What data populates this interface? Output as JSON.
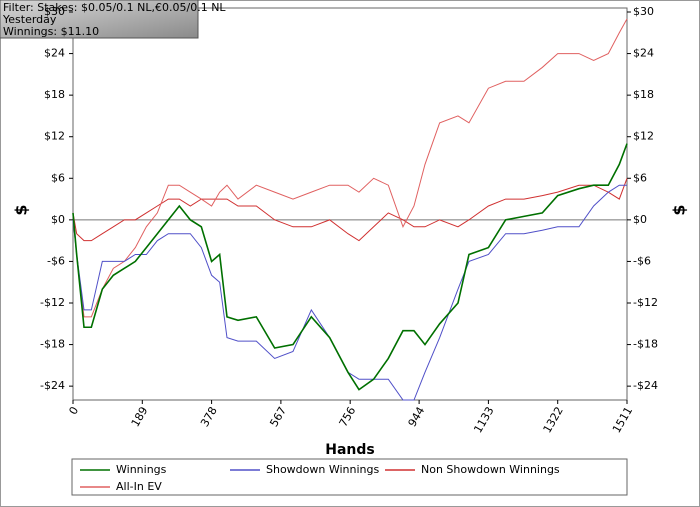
{
  "chart_data": {
    "type": "line",
    "filter_lines": [
      "Filter: Stakes: $0.05/0.1 NL,€0.05/0.1 NL",
      "Yesterday",
      "Winnings: $11.10"
    ],
    "xlabel": "Hands",
    "ylabel": "$",
    "y2label": "$",
    "x": [
      0,
      10,
      30,
      50,
      80,
      110,
      140,
      170,
      200,
      230,
      260,
      290,
      320,
      350,
      378,
      400,
      420,
      450,
      500,
      550,
      600,
      650,
      700,
      750,
      780,
      820,
      860,
      900,
      930,
      960,
      1000,
      1050,
      1080,
      1133,
      1180,
      1230,
      1280,
      1322,
      1380,
      1420,
      1460,
      1490,
      1511
    ],
    "series": [
      {
        "name": "Winnings",
        "color": "#007000",
        "values": [
          1,
          -5,
          -15.5,
          -15.5,
          -10,
          -8,
          -7,
          -6,
          -4,
          -2,
          0,
          2,
          0,
          -1,
          -6,
          -5,
          -14,
          -14.5,
          -14,
          -18.5,
          -18,
          -14,
          -17,
          -22,
          -24.5,
          -23,
          -20,
          -16,
          -16,
          -18,
          -15,
          -12,
          -5,
          -4,
          0,
          0.5,
          1,
          3.5,
          4.5,
          5,
          5,
          8,
          11
        ]
      },
      {
        "name": "Showdown Winnings",
        "color": "#5050c8",
        "values": [
          0,
          -5,
          -13,
          -13,
          -6,
          -6,
          -6,
          -5,
          -5,
          -3,
          -2,
          -2,
          -2,
          -4,
          -8,
          -9,
          -17,
          -17.5,
          -17.5,
          -20,
          -19,
          -13,
          -17,
          -22,
          -23,
          -23,
          -23,
          -26,
          -26,
          -22,
          -17,
          -10,
          -6,
          -5,
          -2,
          -2,
          -1.5,
          -1,
          -1,
          2,
          4,
          5,
          5
        ]
      },
      {
        "name": "Non Showdown Winnings",
        "color": "#d03030",
        "values": [
          1,
          -2,
          -3,
          -3,
          -2,
          -1,
          0,
          0,
          1,
          2,
          3,
          3,
          2,
          3,
          3,
          3,
          3,
          2,
          2,
          0,
          -1,
          -1,
          0,
          -2,
          -3,
          -1,
          1,
          0,
          -1,
          -1,
          0,
          -1,
          0,
          2,
          3,
          3,
          3.5,
          4,
          5,
          5,
          4,
          3,
          6
        ]
      },
      {
        "name": "All-In EV",
        "color": "#e06060",
        "values": [
          1,
          -5,
          -14,
          -14,
          -10,
          -7,
          -6,
          -4,
          -1,
          1,
          5,
          5,
          4,
          3,
          2,
          4,
          5,
          3,
          5,
          4,
          3,
          4,
          5,
          5,
          4,
          6,
          5,
          -1,
          2,
          8,
          14,
          15,
          14,
          19,
          20,
          20,
          22,
          24,
          24,
          23,
          24,
          27,
          29
        ]
      }
    ],
    "xlim": [
      0,
      1511
    ],
    "xticks": [
      0,
      189,
      378,
      567,
      756,
      944,
      1133,
      1322,
      1511
    ],
    "ylim": [
      -26,
      30
    ],
    "yticks": [
      {
        "value": 30,
        "label": "$30"
      },
      {
        "value": 24,
        "label": "$24"
      },
      {
        "value": 18,
        "label": "$18"
      },
      {
        "value": 12,
        "label": "$12"
      },
      {
        "value": 6,
        "label": "$6"
      },
      {
        "value": 0,
        "label": "$0"
      },
      {
        "value": -6,
        "label": "-$6"
      },
      {
        "value": -12,
        "label": "-$12"
      },
      {
        "value": -18,
        "label": "-$18"
      },
      {
        "value": -24,
        "label": "-$24"
      }
    ]
  }
}
